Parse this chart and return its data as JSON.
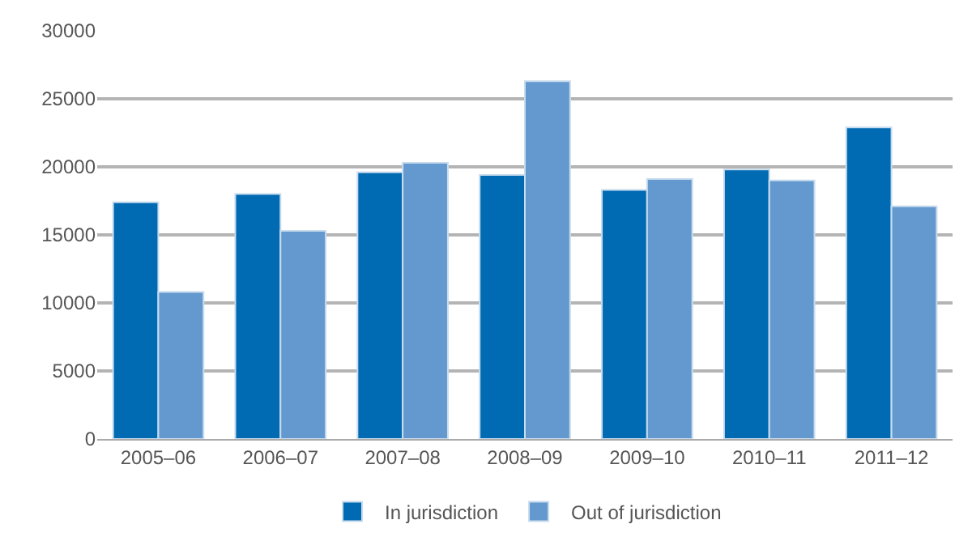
{
  "chart_data": {
    "type": "bar",
    "categories": [
      "2005–06",
      "2006–07",
      "2007–08",
      "2008–09",
      "2009–10",
      "2010–11",
      "2011–12"
    ],
    "series": [
      {
        "name": "In jurisdiction",
        "color": "#006bb3",
        "values": [
          17400,
          18000,
          19600,
          19400,
          18300,
          19800,
          22900
        ]
      },
      {
        "name": "Out of jurisdiction",
        "color": "#6399cf",
        "values": [
          10800,
          15300,
          20300,
          26300,
          19100,
          19000,
          17100
        ]
      }
    ],
    "ylim": [
      0,
      30000
    ],
    "yticks": [
      0,
      5000,
      10000,
      15000,
      20000,
      25000,
      30000
    ],
    "grid": "y",
    "legend": "bottom"
  }
}
